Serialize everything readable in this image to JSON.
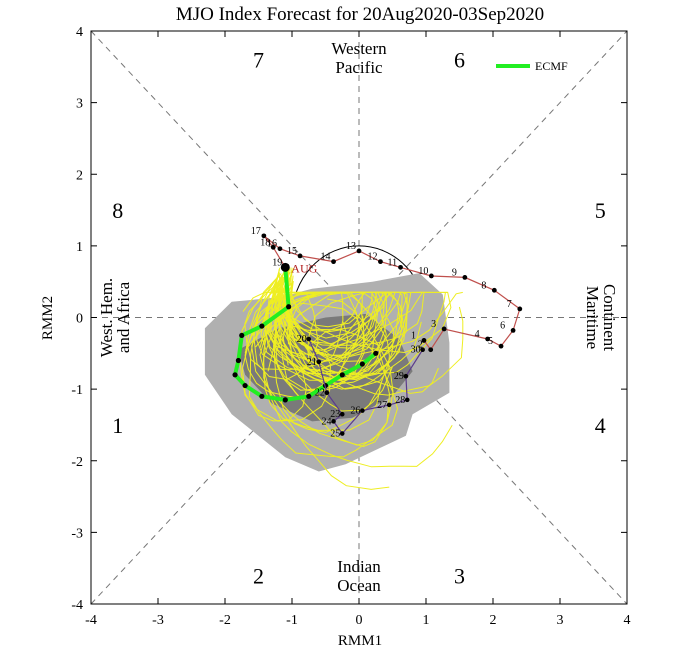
{
  "chart_data": {
    "type": "line",
    "title": "MJO Index Forecast for 20Aug2020-03Sep2020",
    "xlabel": "RMM1",
    "ylabel": "RMM2",
    "xlim": [
      -4,
      4
    ],
    "ylim": [
      -4,
      4
    ],
    "xticks": [
      -4,
      -3,
      -2,
      -1,
      0,
      1,
      2,
      3,
      4
    ],
    "yticks": [
      -4,
      -3,
      -2,
      -1,
      0,
      1,
      2,
      3,
      4
    ],
    "phases": [
      {
        "label": "1",
        "x": -3.6,
        "y": -1.5
      },
      {
        "label": "2",
        "x": -1.5,
        "y": -3.6
      },
      {
        "label": "3",
        "x": 1.5,
        "y": -3.6
      },
      {
        "label": "4",
        "x": 3.6,
        "y": -1.5
      },
      {
        "label": "5",
        "x": 3.6,
        "y": 1.5
      },
      {
        "label": "6",
        "x": 1.5,
        "y": 3.6
      },
      {
        "label": "7",
        "x": -1.5,
        "y": 3.6
      },
      {
        "label": "8",
        "x": -3.6,
        "y": 1.5
      }
    ],
    "regions": {
      "top": [
        "Western",
        "Pacific"
      ],
      "bottom": [
        "Indian",
        "Ocean"
      ],
      "right": [
        "Maritime",
        "Continent"
      ],
      "left": [
        "West. Hem.",
        "and Africa"
      ]
    },
    "legend": {
      "label": "ECMF",
      "color": "#22ee22",
      "position": "top-right"
    },
    "month_label": "AUG",
    "observed": {
      "color": "#c0504d",
      "points": [
        {
          "x": 0.97,
          "y": -0.32,
          "day": "1"
        },
        {
          "x": 1.07,
          "y": -0.45,
          "day": "2"
        },
        {
          "x": 1.27,
          "y": -0.16,
          "day": "3"
        },
        {
          "x": 1.92,
          "y": -0.3,
          "day": "4"
        },
        {
          "x": 2.12,
          "y": -0.4,
          "day": "5"
        },
        {
          "x": 2.3,
          "y": -0.18,
          "day": "6"
        },
        {
          "x": 2.4,
          "y": 0.12,
          "day": "7"
        },
        {
          "x": 2.02,
          "y": 0.38,
          "day": "8"
        },
        {
          "x": 1.58,
          "y": 0.56,
          "day": "9"
        },
        {
          "x": 1.08,
          "y": 0.58,
          "day": "10"
        },
        {
          "x": 0.62,
          "y": 0.7,
          "day": "11"
        },
        {
          "x": 0.32,
          "y": 0.78,
          "day": "12"
        },
        {
          "x": 0.0,
          "y": 0.93,
          "day": "13"
        },
        {
          "x": -0.38,
          "y": 0.78,
          "day": "14"
        },
        {
          "x": -0.88,
          "y": 0.86,
          "day": "15"
        },
        {
          "x": -1.18,
          "y": 0.96,
          "day": "16"
        },
        {
          "x": -1.42,
          "y": 1.14,
          "day": "17"
        },
        {
          "x": -1.28,
          "y": 0.98,
          "day": "18"
        },
        {
          "x": -1.1,
          "y": 0.7,
          "day": "19"
        }
      ]
    },
    "forecast_ecmf": {
      "color": "#22ee22",
      "points": [
        {
          "x": -1.1,
          "y": 0.7
        },
        {
          "x": -1.05,
          "y": 0.15
        },
        {
          "x": -1.45,
          "y": -0.12
        },
        {
          "x": -1.75,
          "y": -0.25
        },
        {
          "x": -1.8,
          "y": -0.6
        },
        {
          "x": -1.85,
          "y": -0.8
        },
        {
          "x": -1.7,
          "y": -0.95
        },
        {
          "x": -1.45,
          "y": -1.1
        },
        {
          "x": -1.1,
          "y": -1.15
        },
        {
          "x": -0.75,
          "y": -1.1
        },
        {
          "x": -0.5,
          "y": -0.95
        },
        {
          "x": -0.25,
          "y": -0.8
        },
        {
          "x": 0.05,
          "y": -0.65
        },
        {
          "x": 0.25,
          "y": -0.5
        }
      ]
    },
    "ensemble_plume": {
      "color": "#eeee22",
      "members": 50,
      "x_range": [
        -2.6,
        1.55
      ],
      "y_range": [
        -2.4,
        0.35
      ]
    },
    "uncertainty_outer": {
      "color": "#b0b0b0",
      "points": [
        {
          "x": -2.3,
          "y": -0.15
        },
        {
          "x": -1.9,
          "y": 0.22
        },
        {
          "x": -1.2,
          "y": 0.28
        },
        {
          "x": -0.7,
          "y": 0.4
        },
        {
          "x": 0.2,
          "y": 0.5
        },
        {
          "x": 0.9,
          "y": 0.62
        },
        {
          "x": 1.25,
          "y": 0.32
        },
        {
          "x": 1.35,
          "y": -0.35
        },
        {
          "x": 1.35,
          "y": -1.05
        },
        {
          "x": 0.8,
          "y": -1.35
        },
        {
          "x": 0.7,
          "y": -1.65
        },
        {
          "x": -0.2,
          "y": -2.05
        },
        {
          "x": -0.6,
          "y": -2.15
        },
        {
          "x": -1.1,
          "y": -1.95
        },
        {
          "x": -1.9,
          "y": -1.35
        },
        {
          "x": -2.3,
          "y": -0.8
        }
      ]
    },
    "uncertainty_inner": {
      "color": "#7a7a7a",
      "points": [
        {
          "x": -1.8,
          "y": -0.45
        },
        {
          "x": -1.2,
          "y": -0.15
        },
        {
          "x": -0.5,
          "y": 0.0
        },
        {
          "x": 0.1,
          "y": 0.05
        },
        {
          "x": 0.6,
          "y": -0.3
        },
        {
          "x": 0.8,
          "y": -0.75
        },
        {
          "x": 0.5,
          "y": -1.1
        },
        {
          "x": -0.1,
          "y": -1.4
        },
        {
          "x": -0.7,
          "y": -1.45
        },
        {
          "x": -1.3,
          "y": -1.2
        },
        {
          "x": -1.7,
          "y": -0.8
        }
      ]
    },
    "other_forecast": {
      "color": "#5b3b8c",
      "points": [
        {
          "x": -0.75,
          "y": -0.3,
          "day": "20"
        },
        {
          "x": -0.6,
          "y": -0.62,
          "day": "21"
        },
        {
          "x": -0.48,
          "y": -1.05,
          "day": "22"
        },
        {
          "x": -0.25,
          "y": -1.35,
          "day": "23"
        },
        {
          "x": -0.38,
          "y": -1.45,
          "day": "24"
        },
        {
          "x": -0.25,
          "y": -1.62,
          "day": "25"
        },
        {
          "x": 0.05,
          "y": -1.3,
          "day": "26"
        },
        {
          "x": 0.45,
          "y": -1.22,
          "day": "27"
        },
        {
          "x": 0.72,
          "y": -1.15,
          "day": "28"
        },
        {
          "x": 0.7,
          "y": -0.82,
          "day": "29"
        },
        {
          "x": 0.95,
          "y": -0.45,
          "day": "30"
        }
      ]
    },
    "grid": false
  }
}
